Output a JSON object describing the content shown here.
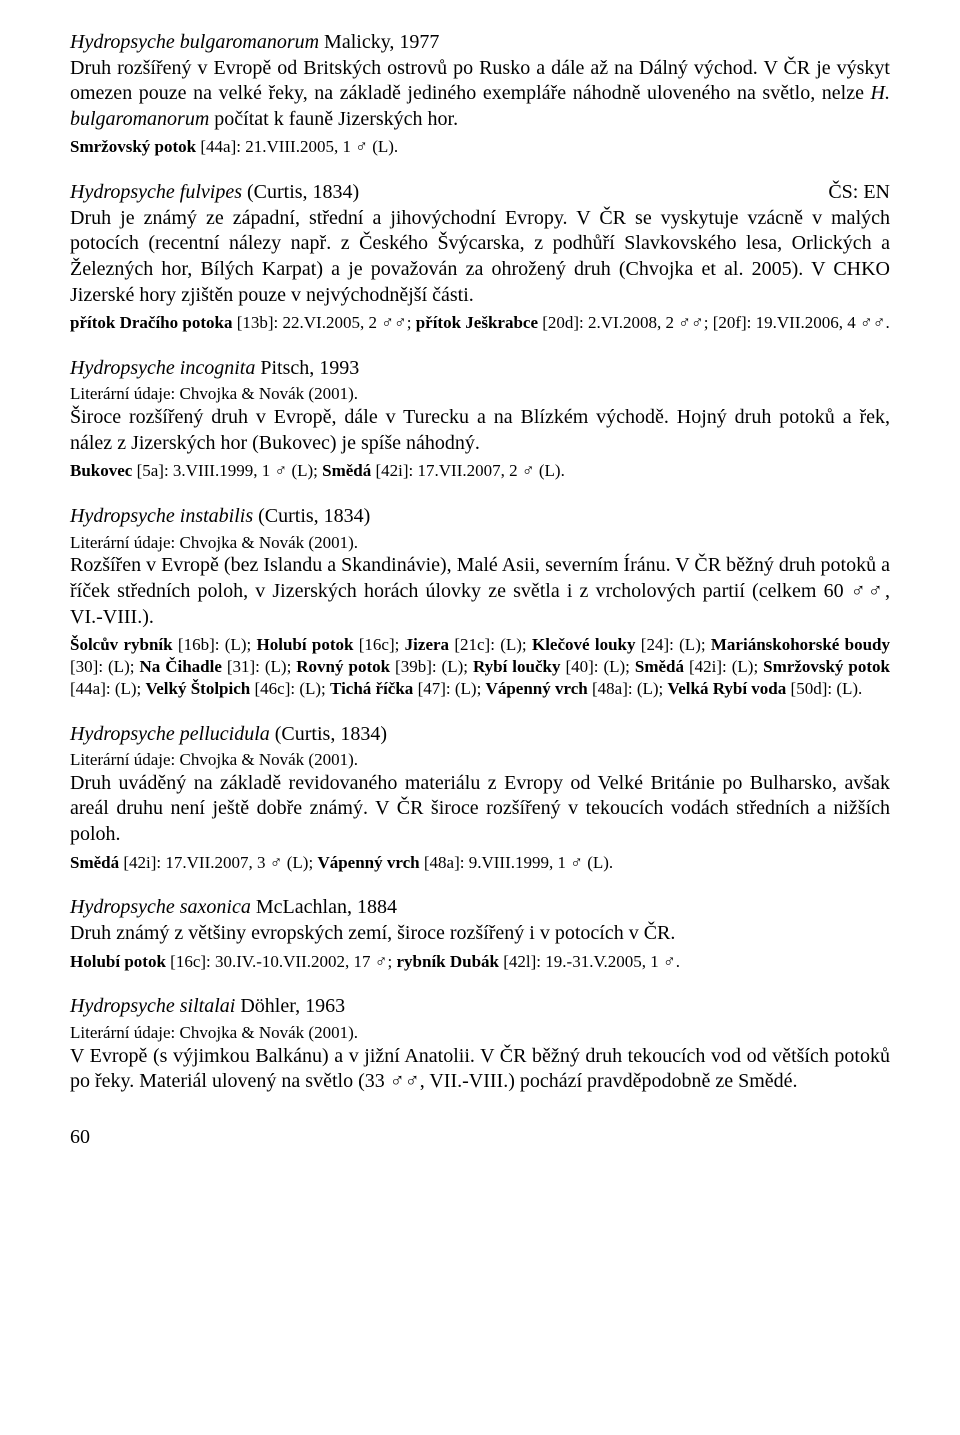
{
  "page_number": "60",
  "species": [
    {
      "name": "Hydropsyche bulgaromanorum",
      "author": "Malicky, 1977",
      "status": "",
      "lit": "",
      "desc": "Druh rozšířený v Evropě od Britských ostrovů po Rusko a dále až na Dálný východ. V ČR je výskyt omezen pouze na velké řeky, na základě jediného exempláře náhodně uloveného na světlo, nelze <i>H. bulgaromanorum</i> počítat k fauně Jizerských hor.",
      "records": "<b>Smržovský potok</b> [44a]: 21.VIII.2005, 1 ♂ (L)."
    },
    {
      "name": "Hydropsyche fulvipes",
      "author": "(Curtis, 1834)",
      "status": "ČS: EN",
      "lit": "",
      "desc": "Druh je známý ze západní, střední a jihovýchodní Evropy. V ČR se vyskytuje vzácně v malých potocích (recentní nálezy např. z Českého Švýcarska, z podhůří Slavkovského lesa, Orlických a Železných hor, Bílých Karpat) a je považován za ohrožený druh (Chvojka et al. 2005). V CHKO Jizerské hory zjištěn pouze v nejvýchodnější části.",
      "records": "<b>přítok Dračího potoka</b> [13b]: 22.VI.2005, 2 ♂♂; <b>přítok Ješkrabce</b> [20d]: 2.VI.2008, 2 ♂♂; [20f]: 19.VII.2006, 4 ♂♂."
    },
    {
      "name": "Hydropsyche incognita",
      "author": "Pitsch, 1993",
      "status": "",
      "lit": "Literární údaje: Chvojka & Novák (2001).",
      "desc": "Široce rozšířený druh v Evropě, dále v Turecku a na Blízkém východě. Hojný druh potoků a řek, nález z Jizerských hor (Bukovec) je spíše náhodný.",
      "records": "<b>Bukovec</b> [5a]: 3.VIII.1999, 1 ♂ (L); <b>Smědá</b> [42i]: 17.VII.2007, 2 ♂ (L)."
    },
    {
      "name": "Hydropsyche instabilis",
      "author": "(Curtis, 1834)",
      "status": "",
      "lit": "Literární údaje: Chvojka & Novák (2001).",
      "desc": "Rozšířen v Evropě (bez Islandu a Skandinávie), Malé Asii, severním Íránu. V ČR běžný druh potoků a říček středních poloh, v Jizerských horách úlovky ze světla i z vrcholových partií (celkem 60 ♂♂, VI.-VIII.).",
      "records": "<b>Šolcův rybník</b> [16b]: (L); <b>Holubí potok</b> [16c]; <b>Jizera</b> [21c]: (L); <b>Klečové louky</b> [24]: (L); <b>Mariánskohorské boudy</b> [30]: (L); <b>Na Čihadle</b> [31]: (L); <b>Rovný potok</b> [39b]: (L); <b>Rybí loučky</b> [40]: (L); <b>Smědá</b> [42i]: (L); <b>Smržovský potok</b> [44a]: (L); <b>Velký Štolpich</b> [46c]: (L); <b>Tichá říčka</b> [47]: (L); <b>Vápenný vrch</b> [48a]: (L); <b>Velká Rybí voda</b> [50d]: (L)."
    },
    {
      "name": "Hydropsyche pellucidula",
      "author": "(Curtis, 1834)",
      "status": "",
      "lit": "Literární údaje: Chvojka & Novák (2001).",
      "desc": "Druh uváděný na základě revidovaného materiálu z Evropy od Velké Británie po Bulharsko, avšak areál druhu není ještě dobře známý. V ČR široce rozšířený v tekoucích vodách středních a nižších poloh.",
      "records": "<b>Smědá</b> [42i]: 17.VII.2007, 3 ♂ (L); <b>Vápenný vrch</b> [48a]: 9.VIII.1999, 1 ♂ (L)."
    },
    {
      "name": "Hydropsyche saxonica",
      "author": "McLachlan, 1884",
      "status": "",
      "lit": "",
      "desc": "Druh známý z většiny evropských zemí, široce rozšířený i v potocích v ČR.",
      "records": "<b>Holubí potok</b> [16c]: 30.IV.-10.VII.2002, 17 ♂; <b>rybník Dubák</b> [42l]: 19.-31.V.2005, 1 ♂."
    },
    {
      "name": "Hydropsyche siltalai",
      "author": "Döhler, 1963",
      "status": "",
      "lit": "Literární údaje: Chvojka & Novák (2001).",
      "desc": "V Evropě (s výjimkou Balkánu) a v jižní Anatolii. V ČR běžný druh tekoucích vod od větších potoků po řeky. Materiál ulovený na světlo (33 ♂♂, VII.-VIII.) pochází pravděpodobně ze Smědé.",
      "records": ""
    }
  ]
}
